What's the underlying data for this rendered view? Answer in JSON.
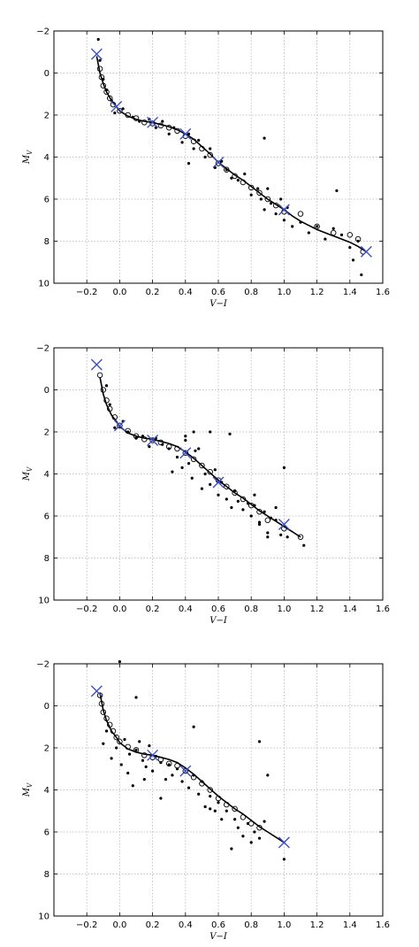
{
  "chart_data": [
    {
      "type": "scatter",
      "xlabel": "V−I",
      "ylabel": "M_V",
      "xlim": [
        -0.4,
        1.6
      ],
      "ylim": [
        10,
        -2
      ],
      "y_inverted": true,
      "grid": true,
      "xticks": [
        -0.2,
        0.0,
        0.2,
        0.4,
        0.6,
        0.8,
        1.0,
        1.2,
        1.4,
        1.6
      ],
      "xtick_labels": [
        "−0.2",
        "0.0",
        "0.2",
        "0.4",
        "0.6",
        "0.8",
        "1.0",
        "1.2",
        "1.4",
        "1.6"
      ],
      "yticks": [
        -2,
        0,
        2,
        4,
        6,
        8,
        10
      ],
      "ytick_labels": [
        "−2",
        "0",
        "2",
        "4",
        "6",
        "8",
        "10"
      ],
      "series": [
        {
          "kind": "line",
          "x": [
            -0.14,
            -0.12,
            -0.1,
            -0.08,
            -0.05,
            -0.02,
            0.0,
            0.05,
            0.1,
            0.15,
            0.2,
            0.25,
            0.3,
            0.35,
            0.4,
            0.45,
            0.5,
            0.55,
            0.6,
            0.65,
            0.7,
            0.75,
            0.8,
            0.85,
            0.9,
            0.95,
            1.0,
            1.05,
            1.1,
            1.15,
            1.2,
            1.25,
            1.3,
            1.35,
            1.4,
            1.45,
            1.5
          ],
          "y": [
            -0.8,
            0.0,
            0.5,
            0.9,
            1.3,
            1.6,
            1.8,
            2.05,
            2.2,
            2.3,
            2.35,
            2.45,
            2.55,
            2.7,
            2.9,
            3.15,
            3.5,
            3.85,
            4.25,
            4.55,
            4.85,
            5.1,
            5.4,
            5.7,
            6.0,
            6.25,
            6.5,
            6.8,
            7.05,
            7.25,
            7.45,
            7.6,
            7.75,
            7.9,
            8.05,
            8.25,
            8.5
          ]
        },
        {
          "kind": "cross",
          "x": [
            -0.14,
            -0.02,
            0.2,
            0.4,
            0.6,
            1.0,
            1.5
          ],
          "y": [
            -0.9,
            1.6,
            2.35,
            2.9,
            4.25,
            6.5,
            8.5
          ]
        },
        {
          "kind": "open_circle",
          "x": [
            -0.12,
            -0.11,
            -0.1,
            -0.08,
            -0.06,
            -0.04,
            0.0,
            0.05,
            0.1,
            0.15,
            0.2,
            0.25,
            0.3,
            0.35,
            0.4,
            0.45,
            0.5,
            0.55,
            0.6,
            0.65,
            0.7,
            0.75,
            0.8,
            0.85,
            0.9,
            0.95,
            1.0,
            1.1,
            1.2,
            1.3,
            1.4,
            1.45,
            1.48
          ],
          "y": [
            -0.2,
            0.2,
            0.6,
            0.9,
            1.2,
            1.5,
            1.8,
            2.0,
            2.15,
            2.35,
            2.4,
            2.5,
            2.6,
            2.75,
            3.0,
            3.25,
            3.6,
            3.9,
            4.3,
            4.6,
            4.9,
            5.2,
            5.45,
            5.7,
            6.0,
            6.3,
            6.6,
            6.7,
            7.3,
            7.6,
            7.7,
            7.9,
            8.5
          ]
        },
        {
          "kind": "dot",
          "x": [
            -0.13,
            -0.12,
            -0.1,
            -0.08,
            -0.05,
            -0.03,
            0.02,
            0.08,
            0.12,
            0.18,
            0.22,
            0.26,
            0.3,
            0.33,
            0.38,
            0.42,
            0.45,
            0.48,
            0.52,
            0.55,
            0.58,
            0.62,
            0.65,
            0.68,
            0.72,
            0.76,
            0.8,
            0.84,
            0.86,
            0.88,
            0.9,
            0.92,
            0.95,
            0.98,
            1.0,
            1.02,
            1.05,
            1.1,
            1.15,
            1.2,
            1.25,
            1.3,
            1.32,
            1.35,
            1.4,
            1.42,
            1.45,
            1.47,
            0.88,
            0.42
          ],
          "y": [
            -1.6,
            -0.6,
            0.3,
            0.8,
            1.3,
            1.9,
            1.7,
            2.1,
            2.3,
            2.2,
            2.6,
            2.3,
            2.9,
            2.6,
            3.3,
            2.9,
            3.6,
            3.2,
            4.0,
            3.6,
            4.5,
            4.2,
            4.6,
            5.0,
            5.1,
            4.8,
            5.8,
            5.5,
            6.0,
            6.5,
            5.5,
            6.2,
            6.7,
            6.0,
            7.0,
            6.4,
            7.3,
            7.1,
            7.6,
            7.3,
            7.9,
            7.4,
            5.6,
            7.7,
            8.3,
            8.9,
            8.0,
            9.6,
            3.1,
            4.3
          ]
        }
      ]
    },
    {
      "type": "scatter",
      "xlabel": "V−I",
      "ylabel": "M_V",
      "xlim": [
        -0.4,
        1.6
      ],
      "ylim": [
        10,
        -2
      ],
      "y_inverted": true,
      "grid": true,
      "xticks": [
        -0.2,
        0.0,
        0.2,
        0.4,
        0.6,
        0.8,
        1.0,
        1.2,
        1.4,
        1.6
      ],
      "xtick_labels": [
        "−0.2",
        "0.0",
        "0.2",
        "0.4",
        "0.6",
        "0.8",
        "1.0",
        "1.2",
        "1.4",
        "1.6"
      ],
      "yticks": [
        -2,
        0,
        2,
        4,
        6,
        8,
        10
      ],
      "ytick_labels": [
        "−2",
        "0",
        "2",
        "4",
        "6",
        "8",
        "10"
      ],
      "series": [
        {
          "kind": "line",
          "x": [
            -0.12,
            -0.1,
            -0.08,
            -0.05,
            -0.02,
            0.0,
            0.05,
            0.1,
            0.15,
            0.2,
            0.25,
            0.3,
            0.35,
            0.4,
            0.45,
            0.5,
            0.55,
            0.6,
            0.65,
            0.7,
            0.75,
            0.8,
            0.85,
            0.9,
            0.95,
            1.0,
            1.05,
            1.1
          ],
          "y": [
            -0.6,
            0.2,
            0.7,
            1.2,
            1.5,
            1.75,
            2.05,
            2.2,
            2.3,
            2.35,
            2.45,
            2.55,
            2.7,
            2.95,
            3.25,
            3.6,
            3.95,
            4.3,
            4.6,
            4.9,
            5.15,
            5.45,
            5.75,
            6.0,
            6.25,
            6.5,
            6.75,
            7.0
          ]
        },
        {
          "kind": "cross",
          "x": [
            -0.14,
            0.0,
            0.2,
            0.4,
            0.6,
            1.0
          ],
          "y": [
            -1.2,
            1.7,
            2.4,
            3.0,
            4.4,
            6.4
          ]
        },
        {
          "kind": "open_circle",
          "x": [
            -0.12,
            -0.1,
            -0.08,
            -0.06,
            -0.03,
            0.0,
            0.05,
            0.1,
            0.15,
            0.2,
            0.25,
            0.3,
            0.35,
            0.4,
            0.45,
            0.5,
            0.55,
            0.6,
            0.65,
            0.7,
            0.75,
            0.8,
            0.85,
            0.9,
            1.0,
            1.1
          ],
          "y": [
            -0.7,
            0.0,
            0.5,
            0.9,
            1.3,
            1.7,
            1.95,
            2.2,
            2.35,
            2.4,
            2.5,
            2.7,
            2.8,
            3.0,
            3.3,
            3.6,
            3.9,
            4.3,
            4.6,
            4.9,
            5.2,
            5.5,
            5.8,
            6.2,
            6.6,
            7.0
          ]
        },
        {
          "kind": "dot",
          "x": [
            -0.08,
            -0.06,
            -0.03,
            0.02,
            0.05,
            0.1,
            0.14,
            0.18,
            0.22,
            0.26,
            0.3,
            0.32,
            0.35,
            0.38,
            0.4,
            0.42,
            0.44,
            0.46,
            0.5,
            0.52,
            0.55,
            0.58,
            0.6,
            0.62,
            0.65,
            0.68,
            0.7,
            0.72,
            0.75,
            0.78,
            0.8,
            0.82,
            0.85,
            0.88,
            0.9,
            0.92,
            0.95,
            0.98,
            1.0,
            1.02,
            1.12,
            0.45,
            0.48,
            0.55,
            0.67,
            0.82,
            0.85,
            0.9,
            0.95,
            0.4
          ],
          "y": [
            -0.2,
            0.7,
            1.8,
            1.5,
            2.0,
            2.3,
            2.2,
            2.7,
            2.3,
            2.6,
            2.8,
            3.9,
            3.2,
            3.7,
            2.2,
            3.5,
            4.2,
            2.9,
            4.7,
            4.0,
            4.5,
            3.8,
            5.0,
            4.4,
            5.2,
            5.6,
            4.8,
            5.3,
            5.7,
            5.4,
            6.0,
            5.0,
            6.3,
            5.8,
            6.8,
            6.1,
            5.6,
            6.9,
            3.7,
            7.0,
            7.4,
            2.0,
            2.8,
            2.0,
            2.1,
            5.5,
            6.4,
            7.0,
            6.2,
            2.4
          ]
        }
      ]
    },
    {
      "type": "scatter",
      "xlabel": "V−I",
      "ylabel": "M_V",
      "xlim": [
        -0.4,
        1.6
      ],
      "ylim": [
        10,
        -2
      ],
      "y_inverted": true,
      "grid": true,
      "xticks": [
        -0.2,
        0.0,
        0.2,
        0.4,
        0.6,
        0.8,
        1.0,
        1.2,
        1.4,
        1.6
      ],
      "xtick_labels": [
        "−0.2",
        "0.0",
        "0.2",
        "0.4",
        "0.6",
        "0.8",
        "1.0",
        "1.2",
        "1.4",
        "1.6"
      ],
      "yticks": [
        -2,
        0,
        2,
        4,
        6,
        8,
        10
      ],
      "ytick_labels": [
        "−2",
        "0",
        "2",
        "4",
        "6",
        "8",
        "10"
      ],
      "series": [
        {
          "kind": "line",
          "x": [
            -0.12,
            -0.1,
            -0.08,
            -0.05,
            -0.02,
            0.0,
            0.05,
            0.1,
            0.15,
            0.2,
            0.25,
            0.3,
            0.35,
            0.4,
            0.45,
            0.5,
            0.55,
            0.6,
            0.65,
            0.7,
            0.75,
            0.8,
            0.85,
            0.9,
            0.95,
            1.0
          ],
          "y": [
            -0.6,
            0.2,
            0.7,
            1.2,
            1.5,
            1.75,
            2.05,
            2.2,
            2.3,
            2.35,
            2.45,
            2.55,
            2.7,
            2.95,
            3.25,
            3.6,
            3.95,
            4.3,
            4.6,
            4.9,
            5.15,
            5.45,
            5.75,
            6.0,
            6.25,
            6.5
          ]
        },
        {
          "kind": "cross",
          "x": [
            -0.14,
            0.2,
            0.4,
            1.0
          ],
          "y": [
            -0.7,
            2.35,
            3.1,
            6.5
          ]
        },
        {
          "kind": "open_circle",
          "x": [
            -0.12,
            -0.11,
            -0.1,
            -0.08,
            -0.06,
            -0.04,
            -0.02,
            0.0,
            0.05,
            0.1,
            0.15,
            0.2,
            0.25,
            0.3,
            0.35,
            0.4,
            0.45,
            0.5,
            0.55,
            0.6,
            0.65,
            0.7,
            0.75,
            0.8,
            0.85
          ],
          "y": [
            -0.5,
            -0.1,
            0.3,
            0.6,
            0.9,
            1.2,
            1.5,
            1.7,
            1.95,
            2.1,
            2.35,
            2.45,
            2.55,
            2.75,
            2.85,
            3.1,
            3.4,
            3.7,
            4.0,
            4.4,
            4.7,
            4.9,
            5.3,
            5.6,
            5.8
          ]
        },
        {
          "kind": "dot",
          "x": [
            -0.1,
            -0.08,
            -0.05,
            -0.02,
            0.01,
            0.03,
            0.06,
            0.08,
            0.1,
            0.12,
            0.14,
            0.16,
            0.18,
            0.2,
            0.22,
            0.25,
            0.28,
            0.3,
            0.32,
            0.35,
            0.38,
            0.42,
            0.45,
            0.48,
            0.5,
            0.52,
            0.55,
            0.58,
            0.6,
            0.62,
            0.65,
            0.68,
            0.7,
            0.72,
            0.75,
            0.78,
            0.8,
            0.82,
            0.85,
            0.88,
            0.9,
            1.0,
            0.0,
            0.1,
            0.45,
            0.85,
            0.05,
            0.15,
            0.25,
            0.55
          ],
          "y": [
            1.8,
            1.2,
            2.5,
            2.0,
            2.8,
            1.6,
            2.3,
            3.8,
            2.1,
            1.7,
            2.6,
            2.9,
            1.9,
            3.1,
            2.4,
            2.7,
            3.5,
            2.8,
            3.3,
            3.0,
            3.6,
            3.9,
            3.3,
            4.2,
            3.6,
            4.8,
            4.3,
            5.0,
            4.6,
            5.4,
            5.0,
            6.8,
            5.4,
            5.8,
            6.2,
            5.6,
            6.5,
            6.0,
            6.3,
            5.5,
            3.3,
            7.3,
            -2.1,
            -0.4,
            1.0,
            1.7,
            3.2,
            3.5,
            4.4,
            4.9
          ]
        }
      ]
    }
  ]
}
